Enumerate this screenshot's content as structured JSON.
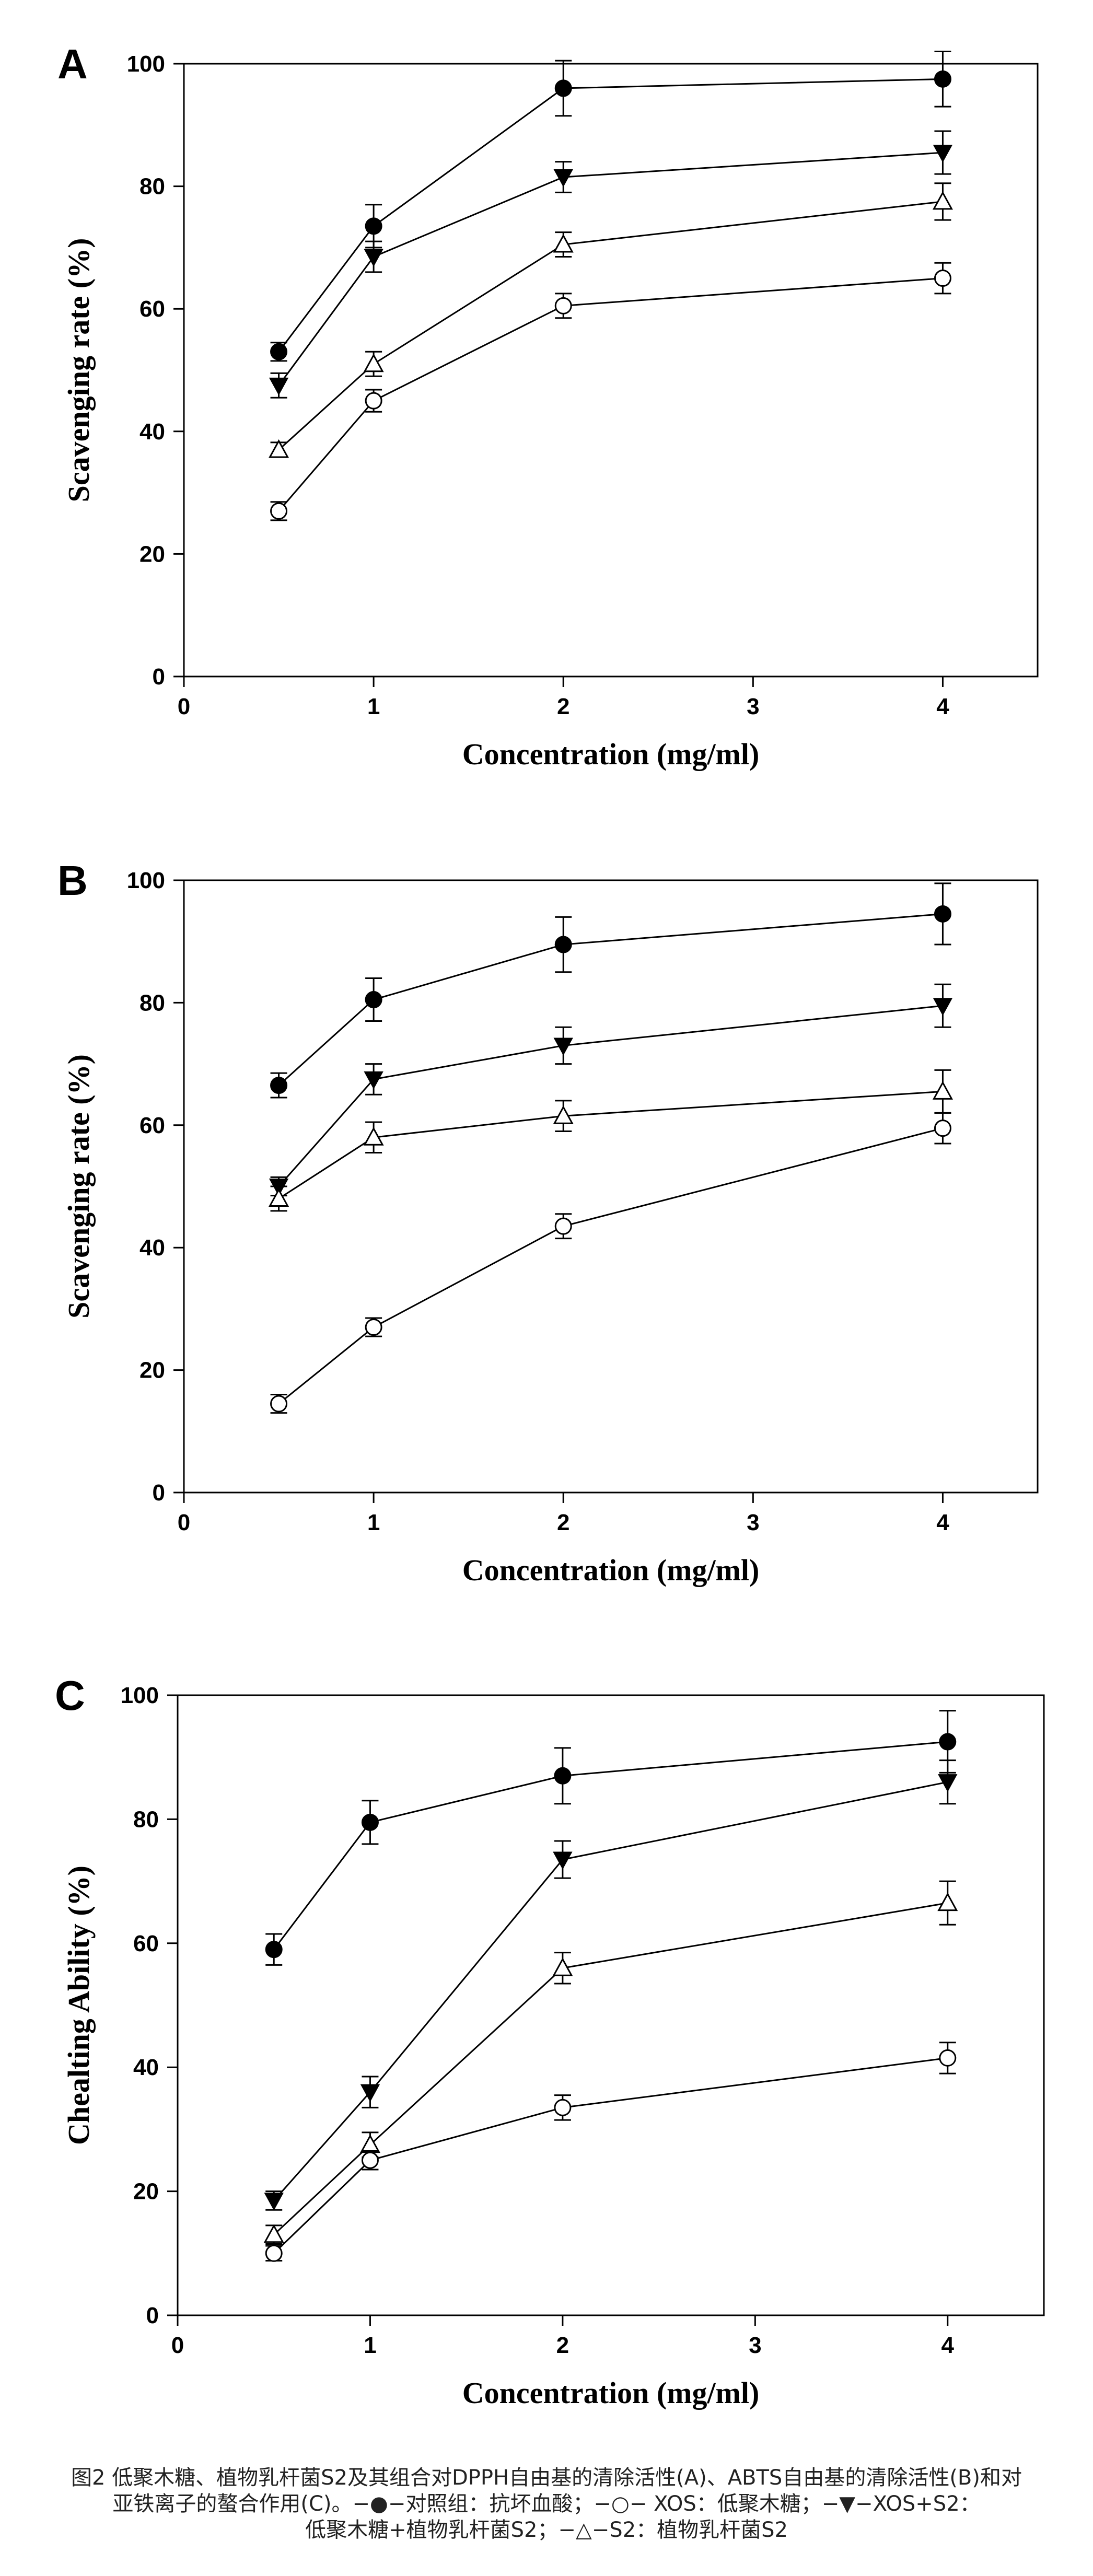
{
  "chart_data": [
    {
      "type": "scatter",
      "panel_label": "A",
      "xlabel": "Concentration (mg/ml)",
      "ylabel": "Scavenging  rate (%)",
      "xlim": [
        0,
        4.5
      ],
      "ylim": [
        0,
        100
      ],
      "x_ticks": [
        "0",
        "1",
        "2",
        "3",
        "4"
      ],
      "y_ticks": [
        "0",
        "20",
        "40",
        "60",
        "80",
        "100"
      ],
      "grid": false,
      "x": [
        0.5,
        1,
        2,
        4
      ],
      "series": [
        {
          "marker": "filled-circle",
          "values": [
            53,
            73.5,
            96,
            97.5
          ],
          "errors": [
            1.5,
            3.5,
            4.5,
            4.5
          ]
        },
        {
          "marker": "filled-triangle-down",
          "values": [
            47.5,
            68.5,
            81.5,
            85.5
          ],
          "errors": [
            2,
            2.5,
            2.5,
            3.5
          ]
        },
        {
          "marker": "open-triangle-up",
          "values": [
            37,
            51,
            70.5,
            77.5
          ],
          "errors": [
            1.2,
            2,
            2,
            3
          ]
        },
        {
          "marker": "open-circle",
          "values": [
            27,
            45,
            60.5,
            65
          ],
          "errors": [
            1.5,
            1.8,
            2,
            2.5
          ]
        }
      ]
    },
    {
      "type": "scatter",
      "panel_label": "B",
      "xlabel": "Concentration (mg/ml)",
      "ylabel": "Scavenging  rate (%)",
      "xlim": [
        0,
        4.5
      ],
      "ylim": [
        0,
        100
      ],
      "x_ticks": [
        "0",
        "1",
        "2",
        "3",
        "4"
      ],
      "y_ticks": [
        "0",
        "20",
        "40",
        "60",
        "80",
        "100"
      ],
      "grid": false,
      "x": [
        0.5,
        1,
        2,
        4
      ],
      "series": [
        {
          "marker": "filled-circle",
          "values": [
            66.5,
            80.5,
            89.5,
            94.5
          ],
          "errors": [
            2,
            3.5,
            4.5,
            5
          ]
        },
        {
          "marker": "filled-triangle-down",
          "values": [
            50,
            67.5,
            73,
            79.5
          ],
          "errors": [
            1.5,
            2.5,
            3,
            3.5
          ]
        },
        {
          "marker": "open-triangle-up",
          "values": [
            48,
            58,
            61.5,
            65.5
          ],
          "errors": [
            2,
            2.5,
            2.5,
            3.5
          ]
        },
        {
          "marker": "open-circle",
          "values": [
            14.5,
            27,
            43.5,
            59.5
          ],
          "errors": [
            1.5,
            1.5,
            2,
            2.5
          ]
        }
      ]
    },
    {
      "type": "scatter",
      "panel_label": "C",
      "xlabel": "Concentration (mg/ml)",
      "ylabel": "Chealting Ability (%)",
      "xlim": [
        0,
        4.5
      ],
      "ylim": [
        0,
        100
      ],
      "x_ticks": [
        "0",
        "1",
        "2",
        "3",
        "4"
      ],
      "y_ticks": [
        "0",
        "20",
        "40",
        "60",
        "80",
        "100"
      ],
      "grid": false,
      "x": [
        0.5,
        1,
        2,
        4
      ],
      "series": [
        {
          "marker": "filled-circle",
          "values": [
            59,
            79.5,
            87,
            92.5
          ],
          "errors": [
            2.5,
            3.5,
            4.5,
            5
          ]
        },
        {
          "marker": "filled-triangle-down",
          "values": [
            18.5,
            36,
            73.5,
            86
          ],
          "errors": [
            1.5,
            2.5,
            3,
            3.5
          ]
        },
        {
          "marker": "open-triangle-up",
          "values": [
            13,
            27.5,
            56,
            66.5
          ],
          "errors": [
            1.5,
            2,
            2.5,
            3.5
          ]
        },
        {
          "marker": "open-circle",
          "values": [
            10,
            25,
            33.5,
            41.5
          ],
          "errors": [
            1.2,
            1.5,
            2,
            2.5
          ]
        }
      ]
    }
  ],
  "caption": {
    "line1": "图2 低聚木糖、植物乳杆菌S2及其组合对DPPH自由基的清除活性(A)、ABTS自由基的清除活性(B)和对",
    "line2": "亚铁离子的螯合作用(C)。−●−对照组：抗坏血酸；−○− XOS：低聚木糖；−▼−XOS+S2：",
    "line3": "低聚木糖+植物乳杆菌S2；−△−S2：植物乳杆菌S2"
  }
}
